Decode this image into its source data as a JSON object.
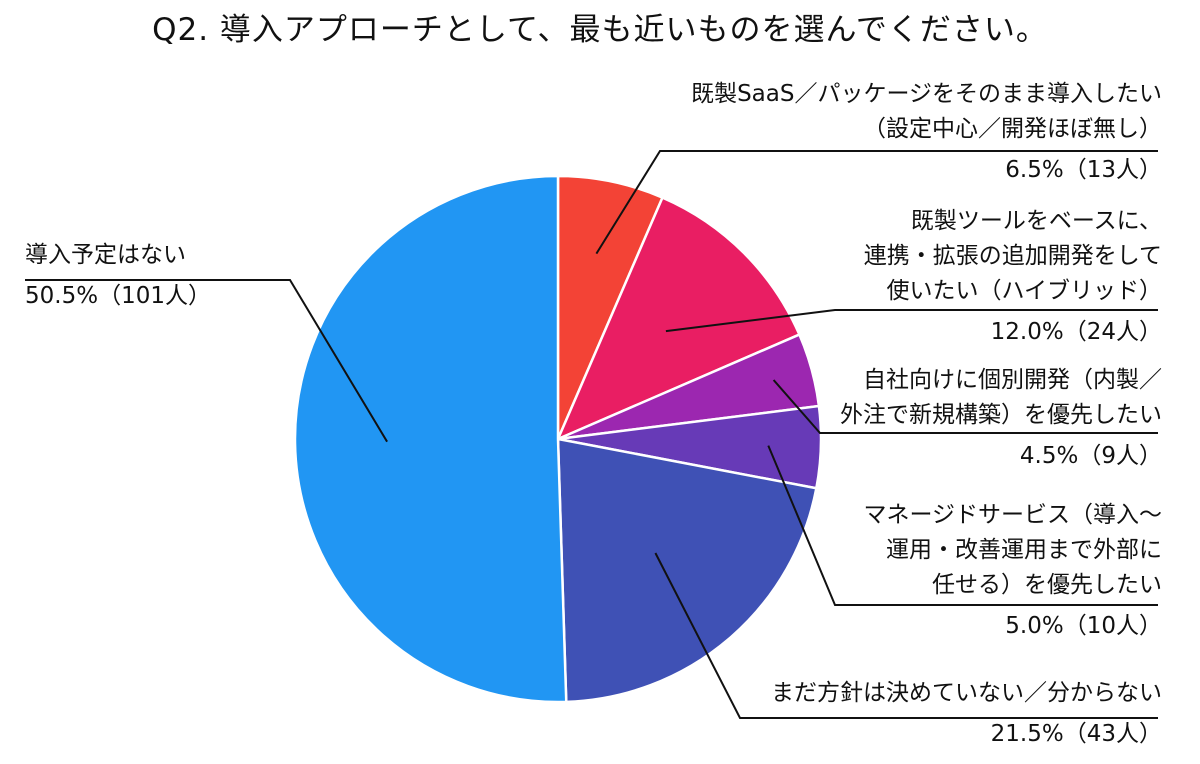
{
  "chart_data": {
    "type": "pie",
    "title": "Q2. 導入アプローチとして、最も近いものを選んでください。",
    "slices": [
      {
        "label_lines": [
          "既製SaaS／パッケージをそのまま導入したい",
          "（設定中心／開発ほぼ無し）"
        ],
        "percent": 6.5,
        "count": 13,
        "value_text": "6.5%（13人）",
        "color": "#f34336"
      },
      {
        "label_lines": [
          "既製ツールをベースに、",
          "連携・拡張の追加開発をして",
          "使いたい（ハイブリッド）"
        ],
        "percent": 12.0,
        "count": 24,
        "value_text": "12.0%（24人）",
        "color": "#e91e63"
      },
      {
        "label_lines": [
          "自社向けに個別開発（内製／",
          "外注で新規構築）を優先したい"
        ],
        "percent": 4.5,
        "count": 9,
        "value_text": "4.5%（9人）",
        "color": "#9c27b0"
      },
      {
        "label_lines": [
          "マネージドサービス（導入～",
          "運用・改善運用まで外部に",
          "任せる）を優先したい"
        ],
        "percent": 5.0,
        "count": 10,
        "value_text": "5.0%（10人）",
        "color": "#673ab7"
      },
      {
        "label_lines": [
          "まだ方針は決めていない／分からない"
        ],
        "percent": 21.5,
        "count": 43,
        "value_text": "21.5%（43人）",
        "color": "#3f51b5"
      },
      {
        "label_lines": [
          "導入予定はない"
        ],
        "percent": 50.5,
        "count": 101,
        "value_text": "50.5%（101人）",
        "color": "#2196f3"
      }
    ]
  }
}
